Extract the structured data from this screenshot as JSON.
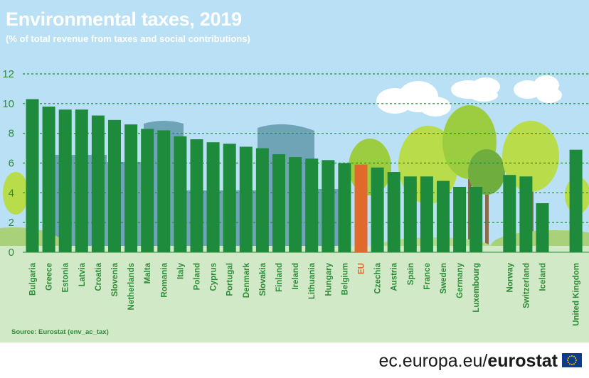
{
  "header": {
    "title": "Environmental taxes, 2019",
    "subtitle": "(% of total revenue from taxes and social contributions)"
  },
  "source": "Source: Eurostat (env_ac_tax)",
  "footer": {
    "site_plain": "ec.europa.eu/",
    "site_bold": "eurostat"
  },
  "colors": {
    "bar": "#1e8a3c",
    "eu_bar": "#e06a2c",
    "eu_label": "#e06a2c",
    "label": "#2e8b3a",
    "sky": "#b9e0f4",
    "ground": "#d2e9c7",
    "gridline": "#1e8a3c"
  },
  "chart_data": {
    "type": "bar",
    "ylim": [
      0,
      12
    ],
    "yticks": [
      0,
      2,
      4,
      6,
      8,
      10,
      12
    ],
    "grid": true,
    "categories": [
      "Bulgaria",
      "Greece",
      "Estonia",
      "Latvia",
      "Croatia",
      "Slovenia",
      "Netherlands",
      "Malta",
      "Romania",
      "Italy",
      "Poland",
      "Cyprus",
      "Portugal",
      "Denmark",
      "Slovakia",
      "Finland",
      "Ireland",
      "Lithuania",
      "Hungary",
      "Belgium",
      "EU",
      "Czechia",
      "Austria",
      "Spain",
      "France",
      "Sweden",
      "Germany",
      "Luxembourg",
      "Norway",
      "Switzerland",
      "Iceland",
      "United Kingdom"
    ],
    "values": [
      10.3,
      9.8,
      9.6,
      9.6,
      9.2,
      8.9,
      8.6,
      8.3,
      8.2,
      7.8,
      7.6,
      7.4,
      7.3,
      7.1,
      7.0,
      6.6,
      6.4,
      6.3,
      6.2,
      6.0,
      5.9,
      5.7,
      5.4,
      5.1,
      5.1,
      4.8,
      4.4,
      4.4,
      5.2,
      5.1,
      3.3,
      6.9
    ],
    "highlight": "EU"
  }
}
